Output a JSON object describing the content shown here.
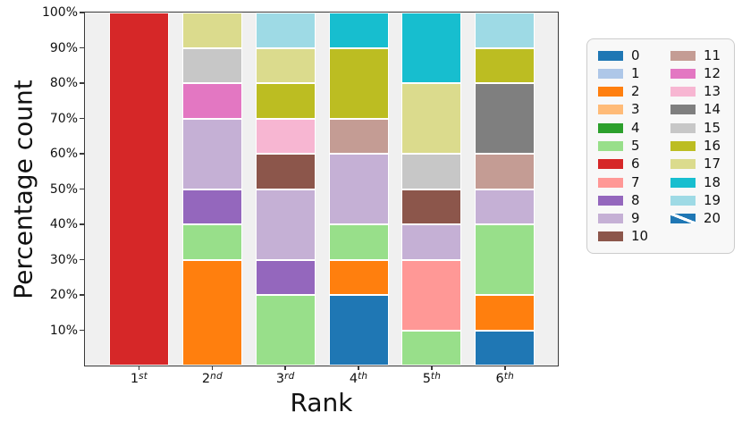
{
  "chart_data": {
    "type": "bar",
    "variant": "stacked-percentage",
    "title": "",
    "xlabel": "Rank",
    "ylabel": "Percentage count",
    "ylim": [
      0,
      100
    ],
    "grid": false,
    "plot_background": "#f0f0f0",
    "legend_position": "right-outside",
    "yticks": [
      {
        "value": 10,
        "label": "10%"
      },
      {
        "value": 20,
        "label": "20%"
      },
      {
        "value": 30,
        "label": "30%"
      },
      {
        "value": 40,
        "label": "40%"
      },
      {
        "value": 50,
        "label": "50%"
      },
      {
        "value": 60,
        "label": "60%"
      },
      {
        "value": 70,
        "label": "70%"
      },
      {
        "value": 80,
        "label": "80%"
      },
      {
        "value": 90,
        "label": "90%"
      },
      {
        "value": 100,
        "label": "100%"
      }
    ],
    "categories": [
      {
        "label": "1st",
        "base": "1",
        "sup": "st"
      },
      {
        "label": "2nd",
        "base": "2",
        "sup": "nd"
      },
      {
        "label": "3rd",
        "base": "3",
        "sup": "rd"
      },
      {
        "label": "4th",
        "base": "4",
        "sup": "th"
      },
      {
        "label": "5th",
        "base": "5",
        "sup": "th"
      },
      {
        "label": "6th",
        "base": "6",
        "sup": "th"
      }
    ],
    "palette": {
      "0": "#1f77b4",
      "1": "#aec7e8",
      "2": "#ff7f0e",
      "3": "#ffbb78",
      "4": "#2ca02c",
      "5": "#98df8a",
      "6": "#d62728",
      "7": "#ff9896",
      "8": "#9467bd",
      "9": "#c5b0d5",
      "10": "#8c564b",
      "11": "#c49c94",
      "12": "#e377c2",
      "13": "#f7b6d2",
      "14": "#7f7f7f",
      "15": "#c7c7c7",
      "16": "#bcbd22",
      "17": "#dbdb8d",
      "18": "#17becf",
      "19": "#9edae5",
      "20": "#1f77b4"
    },
    "legend_entries": [
      {
        "label": "0",
        "color_key": "0"
      },
      {
        "label": "1",
        "color_key": "1"
      },
      {
        "label": "2",
        "color_key": "2"
      },
      {
        "label": "3",
        "color_key": "3"
      },
      {
        "label": "4",
        "color_key": "4"
      },
      {
        "label": "5",
        "color_key": "5"
      },
      {
        "label": "6",
        "color_key": "6"
      },
      {
        "label": "7",
        "color_key": "7"
      },
      {
        "label": "8",
        "color_key": "8"
      },
      {
        "label": "9",
        "color_key": "9"
      },
      {
        "label": "10",
        "color_key": "10"
      },
      {
        "label": "11",
        "color_key": "11"
      },
      {
        "label": "12",
        "color_key": "12"
      },
      {
        "label": "13",
        "color_key": "13"
      },
      {
        "label": "14",
        "color_key": "14"
      },
      {
        "label": "15",
        "color_key": "15"
      },
      {
        "label": "16",
        "color_key": "16"
      },
      {
        "label": "17",
        "color_key": "17"
      },
      {
        "label": "18",
        "color_key": "18"
      },
      {
        "label": "19",
        "color_key": "19"
      },
      {
        "label": "20",
        "color_key": "20",
        "hatch": "/"
      }
    ],
    "stacks": [
      {
        "category": "1st",
        "segments": [
          {
            "series": "6",
            "value": 100
          }
        ]
      },
      {
        "category": "2nd",
        "segments": [
          {
            "series": "2",
            "value": 30
          },
          {
            "series": "5",
            "value": 10
          },
          {
            "series": "8",
            "value": 10
          },
          {
            "series": "9",
            "value": 20
          },
          {
            "series": "12",
            "value": 10
          },
          {
            "series": "15",
            "value": 10
          },
          {
            "series": "17",
            "value": 10
          }
        ]
      },
      {
        "category": "3rd",
        "segments": [
          {
            "series": "5",
            "value": 20
          },
          {
            "series": "8",
            "value": 10
          },
          {
            "series": "9",
            "value": 20
          },
          {
            "series": "10",
            "value": 10
          },
          {
            "series": "13",
            "value": 10
          },
          {
            "series": "16",
            "value": 10
          },
          {
            "series": "17",
            "value": 10
          },
          {
            "series": "19",
            "value": 10
          }
        ]
      },
      {
        "category": "4th",
        "segments": [
          {
            "series": "0",
            "value": 20
          },
          {
            "series": "2",
            "value": 10
          },
          {
            "series": "5",
            "value": 10
          },
          {
            "series": "9",
            "value": 20
          },
          {
            "series": "11",
            "value": 10
          },
          {
            "series": "16",
            "value": 20
          },
          {
            "series": "18",
            "value": 10
          }
        ]
      },
      {
        "category": "5th",
        "segments": [
          {
            "series": "5",
            "value": 10
          },
          {
            "series": "7",
            "value": 20
          },
          {
            "series": "9",
            "value": 10
          },
          {
            "series": "10",
            "value": 10
          },
          {
            "series": "15",
            "value": 10
          },
          {
            "series": "17",
            "value": 20
          },
          {
            "series": "18",
            "value": 20
          }
        ]
      },
      {
        "category": "6th",
        "segments": [
          {
            "series": "0",
            "value": 10
          },
          {
            "series": "2",
            "value": 10
          },
          {
            "series": "5",
            "value": 20
          },
          {
            "series": "9",
            "value": 10
          },
          {
            "series": "11",
            "value": 10
          },
          {
            "series": "14",
            "value": 20
          },
          {
            "series": "16",
            "value": 10
          },
          {
            "series": "19",
            "value": 10
          }
        ]
      }
    ]
  }
}
